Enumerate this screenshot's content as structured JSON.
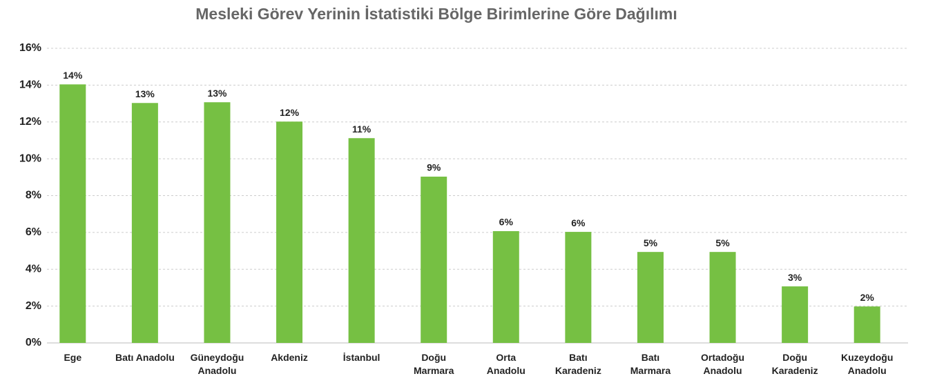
{
  "chart_data": {
    "type": "bar",
    "title": "Mesleki Görev Yerinin İstatistiki Bölge Birimlerine Göre Dağılımı",
    "categories": [
      "Ege",
      "Batı Anadolu",
      "Güneydoğu Anadolu",
      "Akdeniz",
      "İstanbul",
      "Doğu Marmara",
      "Orta Anadolu",
      "Batı Karadeniz",
      "Batı Marmara",
      "Ortadoğu Anadolu",
      "Doğu Karadeniz",
      "Kuzeydoğu Anadolu"
    ],
    "values": [
      14.04,
      13.03,
      13.07,
      12.02,
      11.12,
      9.03,
      6.07,
      6.03,
      4.94,
      4.94,
      3.07,
      1.98
    ],
    "value_labels": [
      "14%",
      "13%",
      "13%",
      "12%",
      "11%",
      "9%",
      "6%",
      "6%",
      "5%",
      "5%",
      "3%",
      "2%"
    ],
    "color": "#76c043",
    "ylim": [
      0,
      16
    ],
    "yticks": [
      {
        "value": 0,
        "label": "0%"
      },
      {
        "value": 2,
        "label": "2%"
      },
      {
        "value": 4,
        "label": "4%"
      },
      {
        "value": 6,
        "label": "6%"
      },
      {
        "value": 8,
        "label": "8%"
      },
      {
        "value": 10,
        "label": "10%"
      },
      {
        "value": 12,
        "label": "12%"
      },
      {
        "value": 14,
        "label": "14%"
      },
      {
        "value": 16,
        "label": "16%"
      }
    ],
    "grid": true
  }
}
